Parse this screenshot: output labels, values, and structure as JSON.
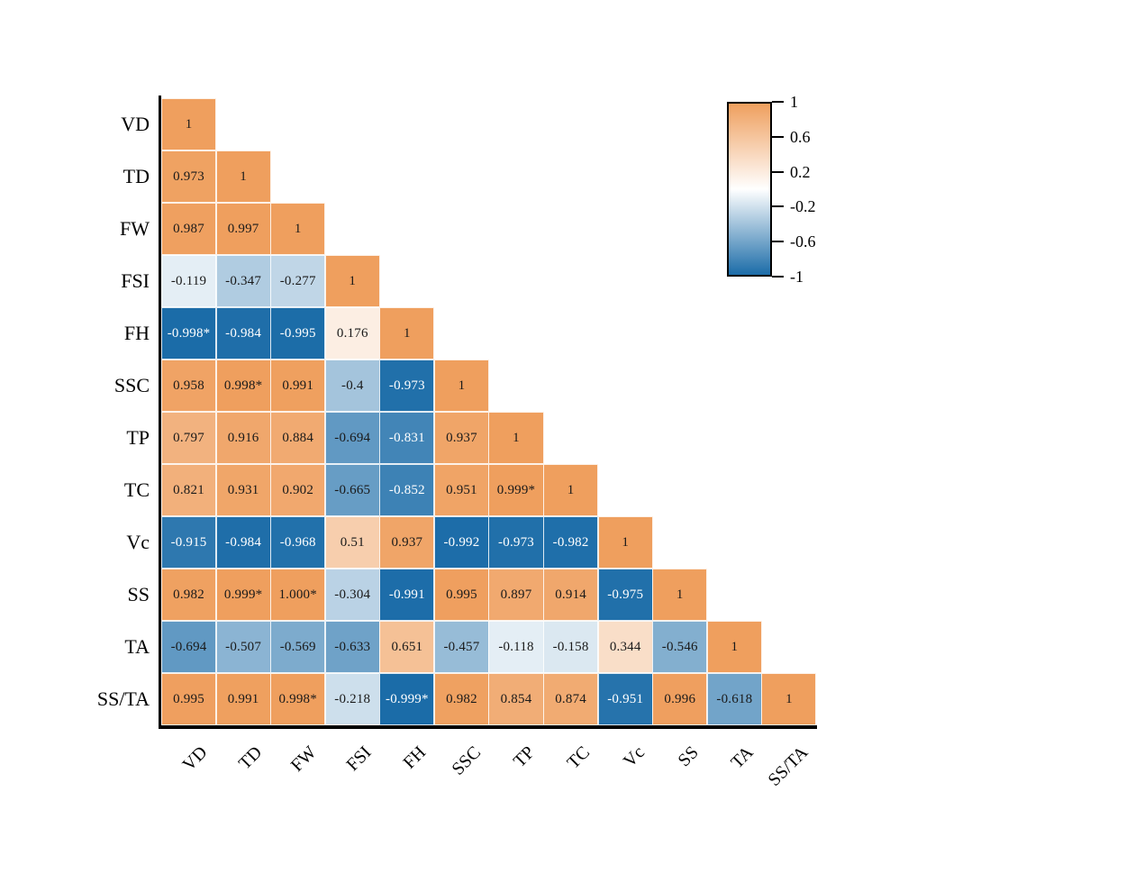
{
  "chart_data": {
    "type": "heatmap",
    "subtype": "correlation-matrix-lower-triangle",
    "title": "",
    "variables": [
      "VD",
      "TD",
      "FW",
      "FSI",
      "FH",
      "SSC",
      "TP",
      "TC",
      "Vc",
      "SS",
      "TA",
      "SS/TA"
    ],
    "x_tick_labels": [
      "VD",
      "TD",
      "FW",
      "FSI",
      "FH",
      "SSC",
      "TP",
      "TC",
      "Vc",
      "SS",
      "TA",
      "SS/TA"
    ],
    "matrix": [
      [
        "1"
      ],
      [
        "0.973",
        "1"
      ],
      [
        "0.987",
        "0.997",
        "1"
      ],
      [
        "-0.119",
        "-0.347",
        "-0.277",
        "1"
      ],
      [
        "-0.998*",
        "-0.984",
        "-0.995",
        "0.176",
        "1"
      ],
      [
        "0.958",
        "0.998*",
        "0.991",
        "-0.4",
        "-0.973",
        "1"
      ],
      [
        "0.797",
        "0.916",
        "0.884",
        "-0.694",
        "-0.831",
        "0.937",
        "1"
      ],
      [
        "0.821",
        "0.931",
        "0.902",
        "-0.665",
        "-0.852",
        "0.951",
        "0.999*",
        "1"
      ],
      [
        "-0.915",
        "-0.984",
        "-0.968",
        "0.51",
        "0.937",
        "-0.992",
        "-0.973",
        "-0.982",
        "1"
      ],
      [
        "0.982",
        "0.999*",
        "1.000*",
        "-0.304",
        "-0.991",
        "0.995",
        "0.897",
        "0.914",
        "-0.975",
        "1"
      ],
      [
        "-0.694",
        "-0.507",
        "-0.569",
        "-0.633",
        "0.651",
        "-0.457",
        "-0.118",
        "-0.158",
        "0.344",
        "-0.546",
        "1"
      ],
      [
        "0.995",
        "0.991",
        "0.998*",
        "-0.218",
        "-0.999*",
        "0.982",
        "0.854",
        "0.874",
        "-0.951",
        "0.996",
        "-0.618",
        "1"
      ]
    ],
    "colorbar": {
      "tick_labels": [
        "1",
        "0.6",
        "0.2",
        "-0.2",
        "-0.6",
        "-1"
      ],
      "tick_values": [
        1,
        0.6,
        0.2,
        -0.2,
        -0.6,
        -1
      ],
      "range": [
        -1,
        1
      ],
      "position": "top-right"
    },
    "colors": {
      "positive_max": "#EF9F5E",
      "midpoint": "#FFFFFF",
      "negative_max": "#1B6CA8",
      "cell_border": "#FFFFFF",
      "axis_line": "#000000",
      "value_text_dark": "#1A1A1A",
      "value_text_light": "#FFFFFF"
    },
    "white_text_threshold": -0.8
  }
}
